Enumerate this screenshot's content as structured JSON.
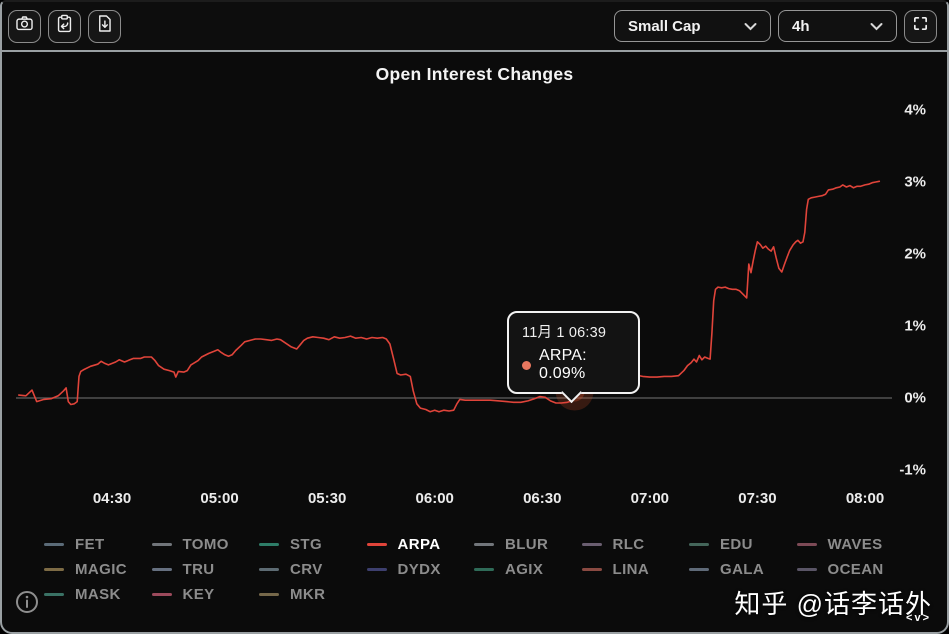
{
  "toolbar": {
    "left_buttons": [
      {
        "name": "screenshot-button",
        "icon": "camera-icon"
      },
      {
        "name": "copy-button",
        "icon": "clipboard-arrow-icon"
      },
      {
        "name": "export-button",
        "icon": "file-download-icon"
      }
    ],
    "category_select": {
      "value": "Small Cap"
    },
    "interval_select": {
      "value": "4h"
    },
    "fullscreen_icon": "fullscreen-icon"
  },
  "tooltip": {
    "date": "11月 1 06:39",
    "text": "ARPA: 0.09%",
    "dot_color": "#e8775f"
  },
  "watermark": {
    "text": "知乎 @话李话外",
    "corner": "<v>"
  },
  "colors": {
    "background": "#0b0b0b",
    "line": "#e0443a",
    "zero_line": "#5f5f5f",
    "glow": "#d4502a"
  },
  "chart_data": {
    "type": "line",
    "title": "Open Interest Changes",
    "xlabel": "",
    "ylabel": "",
    "x_unit": "minutes after 04:00",
    "x_ticks": [
      {
        "minute": 30,
        "label": "04:30"
      },
      {
        "minute": 60,
        "label": "05:00"
      },
      {
        "minute": 90,
        "label": "05:30"
      },
      {
        "minute": 120,
        "label": "06:00"
      },
      {
        "minute": 150,
        "label": "06:30"
      },
      {
        "minute": 180,
        "label": "07:00"
      },
      {
        "minute": 210,
        "label": "07:30"
      },
      {
        "minute": 240,
        "label": "08:00"
      }
    ],
    "y_ticks": [
      {
        "value": 4,
        "label": "4%"
      },
      {
        "value": 3,
        "label": "3%"
      },
      {
        "value": 2,
        "label": "2%"
      },
      {
        "value": 1,
        "label": "1%"
      },
      {
        "value": 0,
        "label": "0%"
      },
      {
        "value": -1,
        "label": "-1%"
      }
    ],
    "ylim": [
      -1.4,
      4.4
    ],
    "grid": false,
    "zero_line": true,
    "legend_position": "bottom",
    "legend": [
      {
        "label": "FET",
        "color": "#5b6b78",
        "active": false
      },
      {
        "label": "TOMO",
        "color": "#71757a",
        "active": false
      },
      {
        "label": "STG",
        "color": "#2e7d68",
        "active": false
      },
      {
        "label": "ARPA",
        "color": "#e0443a",
        "active": true
      },
      {
        "label": "BLUR",
        "color": "#72767b",
        "active": false
      },
      {
        "label": "RLC",
        "color": "#6a5e70",
        "active": false
      },
      {
        "label": "EDU",
        "color": "#44665a",
        "active": false
      },
      {
        "label": "WAVES",
        "color": "#7d4a56",
        "active": false
      },
      {
        "label": "MAGIC",
        "color": "#7d6b45",
        "active": false
      },
      {
        "label": "TRU",
        "color": "#667080",
        "active": false
      },
      {
        "label": "CRV",
        "color": "#5d6b73",
        "active": false
      },
      {
        "label": "DYDX",
        "color": "#3d3f6e",
        "active": false
      },
      {
        "label": "AGIX",
        "color": "#2f6b58",
        "active": false
      },
      {
        "label": "LINA",
        "color": "#8a4a42",
        "active": false
      },
      {
        "label": "GALA",
        "color": "#5f6a78",
        "active": false
      },
      {
        "label": "OCEAN",
        "color": "#5a5566",
        "active": false
      },
      {
        "label": "MASK",
        "color": "#3a7265",
        "active": false
      },
      {
        "label": "KEY",
        "color": "#9c4a5c",
        "active": false
      },
      {
        "label": "MKR",
        "color": "#76684a",
        "active": false
      }
    ],
    "hover": {
      "minute": 159,
      "value": 0.09,
      "time_label": "11月 1 06:39",
      "series": "ARPA"
    },
    "series": [
      {
        "name": "ARPA",
        "color": "#e0443a",
        "points": [
          [
            4,
            0.04
          ],
          [
            6,
            0.03
          ],
          [
            7.7,
            0.11
          ],
          [
            9,
            -0.05
          ],
          [
            11,
            -0.02
          ],
          [
            13,
            -0.01
          ],
          [
            15,
            0.03
          ],
          [
            16.5,
            0.1
          ],
          [
            17.2,
            0.14
          ],
          [
            17.8,
            -0.05
          ],
          [
            18.5,
            -0.09
          ],
          [
            19.5,
            -0.08
          ],
          [
            20.3,
            -0.05
          ],
          [
            20.8,
            0.3
          ],
          [
            21.3,
            0.37
          ],
          [
            22,
            0.39
          ],
          [
            24,
            0.44
          ],
          [
            26,
            0.47
          ],
          [
            27,
            0.51
          ],
          [
            28,
            0.48
          ],
          [
            29,
            0.46
          ],
          [
            31,
            0.5
          ],
          [
            32,
            0.53
          ],
          [
            33.5,
            0.5
          ],
          [
            35,
            0.53
          ],
          [
            36,
            0.55
          ],
          [
            38,
            0.55
          ],
          [
            39,
            0.57
          ],
          [
            41,
            0.57
          ],
          [
            42,
            0.52
          ],
          [
            43,
            0.45
          ],
          [
            44.5,
            0.4
          ],
          [
            46,
            0.38
          ],
          [
            47.3,
            0.36
          ],
          [
            47.8,
            0.29
          ],
          [
            48.5,
            0.37
          ],
          [
            50,
            0.36
          ],
          [
            51,
            0.38
          ],
          [
            52,
            0.46
          ],
          [
            54,
            0.52
          ],
          [
            55,
            0.57
          ],
          [
            57,
            0.62
          ],
          [
            58.5,
            0.65
          ],
          [
            59.5,
            0.67
          ],
          [
            60.5,
            0.63
          ],
          [
            61.5,
            0.6
          ],
          [
            62.5,
            0.58
          ],
          [
            63.5,
            0.6
          ],
          [
            64.5,
            0.66
          ],
          [
            66,
            0.73
          ],
          [
            67,
            0.78
          ],
          [
            68.5,
            0.8
          ],
          [
            70,
            0.82
          ],
          [
            71.5,
            0.82
          ],
          [
            73,
            0.81
          ],
          [
            74.5,
            0.8
          ],
          [
            76,
            0.82
          ],
          [
            77,
            0.81
          ],
          [
            78.5,
            0.76
          ],
          [
            80,
            0.71
          ],
          [
            81.5,
            0.68
          ],
          [
            82.5,
            0.74
          ],
          [
            83.5,
            0.8
          ],
          [
            84.5,
            0.83
          ],
          [
            86,
            0.85
          ],
          [
            87.5,
            0.84
          ],
          [
            89,
            0.83
          ],
          [
            90.5,
            0.81
          ],
          [
            92,
            0.85
          ],
          [
            93.5,
            0.83
          ],
          [
            95,
            0.84
          ],
          [
            96.5,
            0.86
          ],
          [
            98,
            0.83
          ],
          [
            99.5,
            0.84
          ],
          [
            101,
            0.82
          ],
          [
            102.5,
            0.84
          ],
          [
            104,
            0.83
          ],
          [
            105.5,
            0.84
          ],
          [
            106.5,
            0.82
          ],
          [
            107.5,
            0.75
          ],
          [
            108.5,
            0.55
          ],
          [
            109.5,
            0.34
          ],
          [
            110.5,
            0.32
          ],
          [
            112,
            0.33
          ],
          [
            113.2,
            0.3
          ],
          [
            114,
            0.1
          ],
          [
            115,
            -0.08
          ],
          [
            116,
            -0.14
          ],
          [
            117.5,
            -0.16
          ],
          [
            118.7,
            -0.19
          ],
          [
            120,
            -0.17
          ],
          [
            121.2,
            -0.19
          ],
          [
            122.5,
            -0.17
          ],
          [
            124,
            -0.18
          ],
          [
            125.3,
            -0.17
          ],
          [
            126.2,
            -0.08
          ],
          [
            127,
            -0.02
          ],
          [
            128.5,
            -0.03
          ],
          [
            130.5,
            -0.03
          ],
          [
            133,
            -0.03
          ],
          [
            135.5,
            -0.03
          ],
          [
            138,
            -0.04
          ],
          [
            140,
            -0.05
          ],
          [
            142,
            -0.06
          ],
          [
            144,
            -0.06
          ],
          [
            146,
            -0.04
          ],
          [
            147.8,
            -0.01
          ],
          [
            149.3,
            0.02
          ],
          [
            150.8,
            0.01
          ],
          [
            152.3,
            -0.04
          ],
          [
            153.8,
            -0.07
          ],
          [
            155.3,
            -0.07
          ],
          [
            157,
            -0.06
          ],
          [
            158.2,
            -0.04
          ],
          [
            159,
            0.09
          ],
          [
            159.8,
            0.2
          ],
          [
            160.8,
            0.26
          ],
          [
            162,
            0.29
          ],
          [
            163.5,
            0.31
          ],
          [
            165,
            0.29
          ],
          [
            166.5,
            0.27
          ],
          [
            168,
            0.28
          ],
          [
            169.5,
            0.32
          ],
          [
            171,
            0.36
          ],
          [
            172.5,
            0.35
          ],
          [
            174,
            0.34
          ],
          [
            176,
            0.32
          ],
          [
            178,
            0.3
          ],
          [
            180,
            0.29
          ],
          [
            182,
            0.29
          ],
          [
            184,
            0.3
          ],
          [
            186,
            0.3
          ],
          [
            188,
            0.31
          ],
          [
            189.5,
            0.38
          ],
          [
            190.5,
            0.45
          ],
          [
            191.5,
            0.49
          ],
          [
            192.3,
            0.54
          ],
          [
            193,
            0.5
          ],
          [
            193.8,
            0.59
          ],
          [
            194.5,
            0.53
          ],
          [
            195.3,
            0.57
          ],
          [
            196.2,
            0.55
          ],
          [
            196.8,
            0.54
          ],
          [
            197.3,
            0.9
          ],
          [
            197.8,
            1.35
          ],
          [
            198.3,
            1.51
          ],
          [
            199,
            1.54
          ],
          [
            200,
            1.53
          ],
          [
            201,
            1.54
          ],
          [
            202,
            1.52
          ],
          [
            203,
            1.51
          ],
          [
            204,
            1.51
          ],
          [
            205,
            1.49
          ],
          [
            206,
            1.44
          ],
          [
            207,
            1.39
          ],
          [
            207.6,
            1.86
          ],
          [
            208.2,
            1.74
          ],
          [
            208.8,
            1.9
          ],
          [
            209.4,
            2.05
          ],
          [
            210,
            2.17
          ],
          [
            210.8,
            2.13
          ],
          [
            211.5,
            2.08
          ],
          [
            212.3,
            2.11
          ],
          [
            213,
            2.07
          ],
          [
            213.8,
            2.04
          ],
          [
            214.5,
            2.1
          ],
          [
            215.2,
            1.95
          ],
          [
            216,
            1.8
          ],
          [
            216.8,
            1.75
          ],
          [
            217.5,
            1.85
          ],
          [
            218.3,
            1.96
          ],
          [
            219,
            2.05
          ],
          [
            220,
            2.13
          ],
          [
            220.7,
            2.17
          ],
          [
            221.3,
            2.19
          ],
          [
            222,
            2.15
          ],
          [
            222.7,
            2.17
          ],
          [
            223.2,
            2.3
          ],
          [
            223.7,
            2.62
          ],
          [
            224.2,
            2.76
          ],
          [
            225,
            2.78
          ],
          [
            226,
            2.79
          ],
          [
            227,
            2.8
          ],
          [
            228,
            2.81
          ],
          [
            229,
            2.83
          ],
          [
            229.8,
            2.89
          ],
          [
            231,
            2.9
          ],
          [
            232,
            2.92
          ],
          [
            233,
            2.93
          ],
          [
            233.8,
            2.96
          ],
          [
            234.8,
            2.93
          ],
          [
            235.8,
            2.95
          ],
          [
            236.8,
            2.92
          ],
          [
            237.8,
            2.94
          ],
          [
            238.8,
            2.94
          ],
          [
            240,
            2.96
          ],
          [
            241,
            2.97
          ],
          [
            242,
            2.99
          ],
          [
            243,
            3.0
          ],
          [
            244,
            3.01
          ]
        ]
      }
    ]
  }
}
